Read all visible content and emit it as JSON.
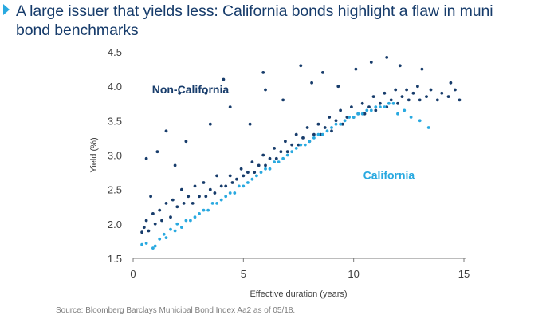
{
  "page": {
    "title": "A large issuer that yields less: California bonds highlight a flaw in muni bond benchmarks",
    "source": "Source: Bloomberg Barclays Municipal Bond Index Aa2 as of 05/18."
  },
  "colors": {
    "title": "#173c6b",
    "marker": "#29a9e0",
    "non_california": "#173c6b",
    "california": "#29a9e0",
    "axis": "#7a7a7a",
    "text": "#3f3f3f",
    "source": "#7d7d7d"
  },
  "chart_data": {
    "type": "scatter",
    "title": "A large issuer that yields less: California bonds highlight a flaw in muni bond benchmarks",
    "xlabel": "Effective duration (years)",
    "ylabel": "Yield (%)",
    "xlim": [
      0,
      15
    ],
    "ylim": [
      1.5,
      4.5
    ],
    "x_ticks": [
      0,
      5,
      10,
      15
    ],
    "x_tick_labels": [
      "0",
      "5",
      "10",
      "15"
    ],
    "y_ticks": [
      1.5,
      2.0,
      2.5,
      3.0,
      3.5,
      4.0,
      4.5
    ],
    "y_tick_labels": [
      "1.5",
      "2.0",
      "2.5",
      "3.0",
      "3.5",
      "4.0",
      "4.5"
    ],
    "grid": false,
    "legend": "none (series labelled directly on the plot)",
    "series": [
      {
        "name": "Non-California",
        "color": "#173c6b",
        "points": [
          [
            0.4,
            1.88
          ],
          [
            0.5,
            1.95
          ],
          [
            0.6,
            2.05
          ],
          [
            0.7,
            1.9
          ],
          [
            0.8,
            2.4
          ],
          [
            0.9,
            2.15
          ],
          [
            1.0,
            2.0
          ],
          [
            1.2,
            2.2
          ],
          [
            1.3,
            2.05
          ],
          [
            1.5,
            2.3
          ],
          [
            1.7,
            2.1
          ],
          [
            1.8,
            2.35
          ],
          [
            2.0,
            2.25
          ],
          [
            2.2,
            2.5
          ],
          [
            2.3,
            2.3
          ],
          [
            2.5,
            2.4
          ],
          [
            2.7,
            2.3
          ],
          [
            2.8,
            2.55
          ],
          [
            3.0,
            2.4
          ],
          [
            3.2,
            2.6
          ],
          [
            3.3,
            2.4
          ],
          [
            3.5,
            2.5
          ],
          [
            3.7,
            2.45
          ],
          [
            3.8,
            2.7
          ],
          [
            4.0,
            2.55
          ],
          [
            4.2,
            2.55
          ],
          [
            4.4,
            2.7
          ],
          [
            4.5,
            2.6
          ],
          [
            4.7,
            2.65
          ],
          [
            4.9,
            2.8
          ],
          [
            5.0,
            2.7
          ],
          [
            5.2,
            2.75
          ],
          [
            5.4,
            2.9
          ],
          [
            5.5,
            2.75
          ],
          [
            5.7,
            2.85
          ],
          [
            5.9,
            3.0
          ],
          [
            6.0,
            2.85
          ],
          [
            6.2,
            2.95
          ],
          [
            6.4,
            3.1
          ],
          [
            6.5,
            2.95
          ],
          [
            6.7,
            3.05
          ],
          [
            6.9,
            3.2
          ],
          [
            7.0,
            3.05
          ],
          [
            7.2,
            3.15
          ],
          [
            7.4,
            3.3
          ],
          [
            7.5,
            3.15
          ],
          [
            7.7,
            3.25
          ],
          [
            7.9,
            3.4
          ],
          [
            8.0,
            3.2
          ],
          [
            8.2,
            3.3
          ],
          [
            8.4,
            3.45
          ],
          [
            8.5,
            3.3
          ],
          [
            8.7,
            3.4
          ],
          [
            8.9,
            3.55
          ],
          [
            9.0,
            3.35
          ],
          [
            9.2,
            3.5
          ],
          [
            9.4,
            3.65
          ],
          [
            9.5,
            3.45
          ],
          [
            9.7,
            3.55
          ],
          [
            9.9,
            3.7
          ],
          [
            10.0,
            3.55
          ],
          [
            10.2,
            3.6
          ],
          [
            10.4,
            3.75
          ],
          [
            10.5,
            3.6
          ],
          [
            10.7,
            3.7
          ],
          [
            10.9,
            3.85
          ],
          [
            11.0,
            3.65
          ],
          [
            11.2,
            3.75
          ],
          [
            11.4,
            3.9
          ],
          [
            11.5,
            3.7
          ],
          [
            11.7,
            3.8
          ],
          [
            11.9,
            3.95
          ],
          [
            12.0,
            3.75
          ],
          [
            12.2,
            3.85
          ],
          [
            12.4,
            3.95
          ],
          [
            12.5,
            3.8
          ],
          [
            12.7,
            3.9
          ],
          [
            12.9,
            4.0
          ],
          [
            13.0,
            3.8
          ],
          [
            13.3,
            3.85
          ],
          [
            13.5,
            3.95
          ],
          [
            13.8,
            3.8
          ],
          [
            14.0,
            3.9
          ],
          [
            14.3,
            3.85
          ],
          [
            14.6,
            3.95
          ],
          [
            14.8,
            3.8
          ],
          [
            0.6,
            2.95
          ],
          [
            1.1,
            3.05
          ],
          [
            1.5,
            3.35
          ],
          [
            1.9,
            2.85
          ],
          [
            2.1,
            3.9
          ],
          [
            2.4,
            3.2
          ],
          [
            3.3,
            3.9
          ],
          [
            3.5,
            3.45
          ],
          [
            4.1,
            4.1
          ],
          [
            4.4,
            3.7
          ],
          [
            5.3,
            3.45
          ],
          [
            6.0,
            3.95
          ],
          [
            6.8,
            3.8
          ],
          [
            7.6,
            4.3
          ],
          [
            8.1,
            4.05
          ],
          [
            8.6,
            4.2
          ],
          [
            9.3,
            4.0
          ],
          [
            10.1,
            4.25
          ],
          [
            10.8,
            4.35
          ],
          [
            11.5,
            4.42
          ],
          [
            12.1,
            4.3
          ],
          [
            13.1,
            4.25
          ],
          [
            14.4,
            4.05
          ],
          [
            5.9,
            4.2
          ]
        ]
      },
      {
        "name": "California",
        "color": "#29a9e0",
        "points": [
          [
            0.4,
            1.7
          ],
          [
            0.6,
            1.72
          ],
          [
            0.9,
            1.65
          ],
          [
            1.0,
            1.68
          ],
          [
            1.2,
            1.78
          ],
          [
            1.4,
            1.85
          ],
          [
            1.5,
            1.8
          ],
          [
            1.7,
            1.92
          ],
          [
            1.9,
            1.9
          ],
          [
            2.0,
            2.0
          ],
          [
            2.2,
            1.95
          ],
          [
            2.4,
            2.05
          ],
          [
            2.6,
            2.05
          ],
          [
            2.8,
            2.1
          ],
          [
            3.0,
            2.15
          ],
          [
            3.2,
            2.2
          ],
          [
            3.4,
            2.2
          ],
          [
            3.6,
            2.3
          ],
          [
            3.8,
            2.3
          ],
          [
            4.0,
            2.35
          ],
          [
            4.2,
            2.4
          ],
          [
            4.4,
            2.45
          ],
          [
            4.6,
            2.45
          ],
          [
            4.8,
            2.55
          ],
          [
            5.0,
            2.55
          ],
          [
            5.2,
            2.6
          ],
          [
            5.4,
            2.65
          ],
          [
            5.6,
            2.7
          ],
          [
            5.8,
            2.75
          ],
          [
            6.0,
            2.8
          ],
          [
            6.2,
            2.8
          ],
          [
            6.4,
            2.9
          ],
          [
            6.6,
            2.9
          ],
          [
            6.8,
            2.95
          ],
          [
            7.0,
            3.0
          ],
          [
            7.2,
            3.05
          ],
          [
            7.4,
            3.1
          ],
          [
            7.6,
            3.15
          ],
          [
            7.8,
            3.15
          ],
          [
            8.0,
            3.2
          ],
          [
            8.2,
            3.25
          ],
          [
            8.4,
            3.3
          ],
          [
            8.6,
            3.3
          ],
          [
            8.8,
            3.35
          ],
          [
            9.0,
            3.4
          ],
          [
            9.2,
            3.45
          ],
          [
            9.4,
            3.45
          ],
          [
            9.6,
            3.5
          ],
          [
            9.8,
            3.55
          ],
          [
            10.0,
            3.55
          ],
          [
            10.2,
            3.6
          ],
          [
            10.4,
            3.6
          ],
          [
            10.6,
            3.65
          ],
          [
            10.8,
            3.65
          ],
          [
            11.0,
            3.7
          ],
          [
            11.2,
            3.7
          ],
          [
            11.4,
            3.7
          ],
          [
            11.6,
            3.75
          ],
          [
            11.8,
            3.75
          ],
          [
            12.0,
            3.6
          ],
          [
            12.3,
            3.65
          ],
          [
            12.6,
            3.55
          ],
          [
            13.0,
            3.5
          ],
          [
            13.4,
            3.4
          ]
        ]
      }
    ],
    "annotations": [
      {
        "text": "Non-California",
        "x": 2.6,
        "y": 3.9,
        "color": "#173c6b"
      },
      {
        "text": "California",
        "x": 11.6,
        "y": 2.65,
        "color": "#29a9e0"
      }
    ]
  }
}
